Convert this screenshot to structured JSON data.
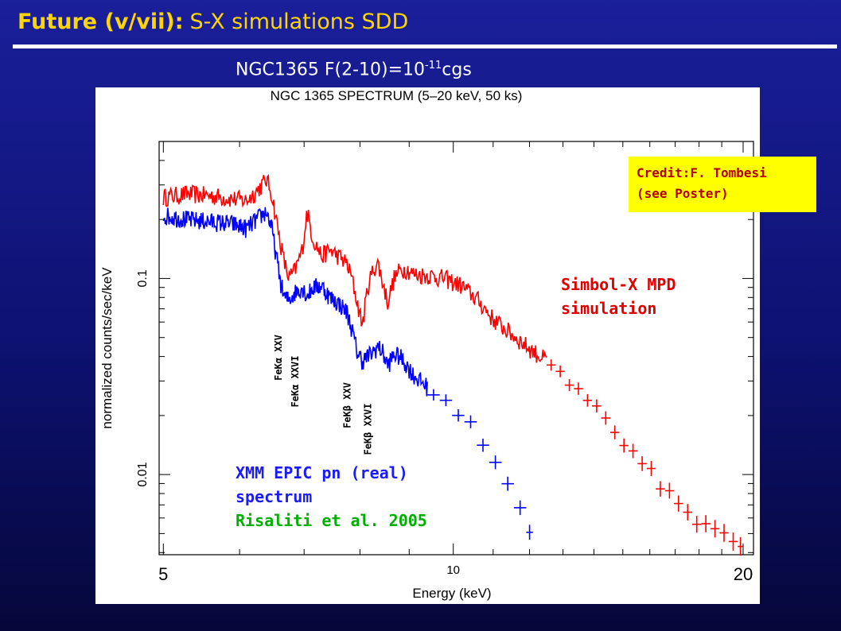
{
  "slide": {
    "title_bold": "Future (v/vii):",
    "title_light": "S-X simulations SDD",
    "subtitle_main": "NGC1365   F(2-10)=10",
    "subtitle_exp": "-11",
    "subtitle_unit": "cgs"
  },
  "credit": {
    "line1": "Credit:F. Tombesi",
    "line2": "(see Poster)"
  },
  "colors": {
    "simbol_series": "#ff0000",
    "xmm_series": "#0000ff",
    "risaliti_text": "#00b000",
    "credit_bg": "#ffff00",
    "title_color": "#ffd500"
  },
  "chart_data": {
    "type": "line",
    "title": "NGC 1365 SPECTRUM (5–20 keV, 50 ks)",
    "xlabel": "Energy (keV)",
    "ylabel": "normalized counts/sec/keV",
    "xscale": "log",
    "yscale": "log",
    "xlim": [
      4.95,
      20.5
    ],
    "ylim": [
      0.0039,
      0.5
    ],
    "x_ticks": [
      {
        "value": 5,
        "label": "5"
      },
      {
        "value": 10,
        "label": "10"
      },
      {
        "value": 20,
        "label": "20"
      }
    ],
    "y_ticks": [
      {
        "value": 0.01,
        "label": "0.01"
      },
      {
        "value": 0.1,
        "label": "0.1"
      }
    ],
    "series": [
      {
        "name": "Simbol-X MPD simulation",
        "x": [
          5.0,
          5.3,
          5.6,
          5.9,
          6.1,
          6.25,
          6.4,
          6.48,
          6.55,
          6.62,
          6.68,
          6.75,
          6.85,
          6.97,
          7.05,
          7.15,
          7.3,
          7.45,
          7.6,
          7.75,
          7.85,
          7.95,
          8.05,
          8.15,
          8.25,
          8.35,
          8.45,
          8.55,
          8.68,
          8.8,
          8.95,
          9.1,
          9.4,
          9.8,
          10.2,
          10.6,
          11.0,
          11.5,
          12.0,
          12.5,
          13.0,
          13.5,
          14.0,
          14.5,
          15.0,
          15.5,
          16.0,
          16.5,
          17.0,
          17.5,
          18.0,
          18.5,
          19.0,
          19.5,
          20.0
        ],
        "y": [
          0.26,
          0.27,
          0.265,
          0.255,
          0.25,
          0.28,
          0.32,
          0.27,
          0.2,
          0.15,
          0.12,
          0.1,
          0.11,
          0.14,
          0.22,
          0.16,
          0.13,
          0.14,
          0.13,
          0.12,
          0.1,
          0.075,
          0.058,
          0.09,
          0.11,
          0.12,
          0.095,
          0.076,
          0.1,
          0.11,
          0.112,
          0.105,
          0.104,
          0.1,
          0.092,
          0.078,
          0.062,
          0.052,
          0.044,
          0.038,
          0.032,
          0.026,
          0.022,
          0.018,
          0.014,
          0.012,
          0.011,
          0.0085,
          0.0075,
          0.0063,
          0.0055,
          0.0053,
          0.0049,
          0.0046,
          0.0043
        ]
      },
      {
        "name": "XMM EPIC pn (real) spectrum",
        "x": [
          5.0,
          5.3,
          5.6,
          5.9,
          6.1,
          6.25,
          6.4,
          6.48,
          6.55,
          6.62,
          6.68,
          6.75,
          6.85,
          6.97,
          7.05,
          7.15,
          7.3,
          7.45,
          7.6,
          7.75,
          7.85,
          7.95,
          8.05,
          8.15,
          8.25,
          8.35,
          8.45,
          8.55,
          8.68,
          8.8,
          8.95,
          9.1,
          9.4,
          9.8,
          10.2,
          10.6,
          11.0,
          11.3,
          11.6,
          11.9,
          12.1
        ],
        "y": [
          0.21,
          0.2,
          0.195,
          0.19,
          0.18,
          0.2,
          0.22,
          0.18,
          0.13,
          0.095,
          0.08,
          0.078,
          0.085,
          0.09,
          0.082,
          0.09,
          0.092,
          0.08,
          0.075,
          0.068,
          0.055,
          0.042,
          0.038,
          0.04,
          0.042,
          0.045,
          0.042,
          0.036,
          0.041,
          0.04,
          0.036,
          0.032,
          0.028,
          0.024,
          0.02,
          0.016,
          0.0125,
          0.01,
          0.0078,
          0.006,
          0.0044
        ]
      }
    ],
    "annotations": [
      {
        "text": "FeKα XXV",
        "x": 6.7
      },
      {
        "text": "FeKα XXVI",
        "x": 6.97
      },
      {
        "text": "FeKβ XXV",
        "x": 7.9
      },
      {
        "text": "FeKβ XXVI",
        "x": 8.3
      }
    ],
    "legend_text": {
      "simbol_line1": "Simbol-X MPD",
      "simbol_line2": "simulation",
      "xmm_line1": "XMM EPIC pn (real)",
      "xmm_line2": "spectrum",
      "reference": "Risaliti et al. 2005"
    }
  }
}
